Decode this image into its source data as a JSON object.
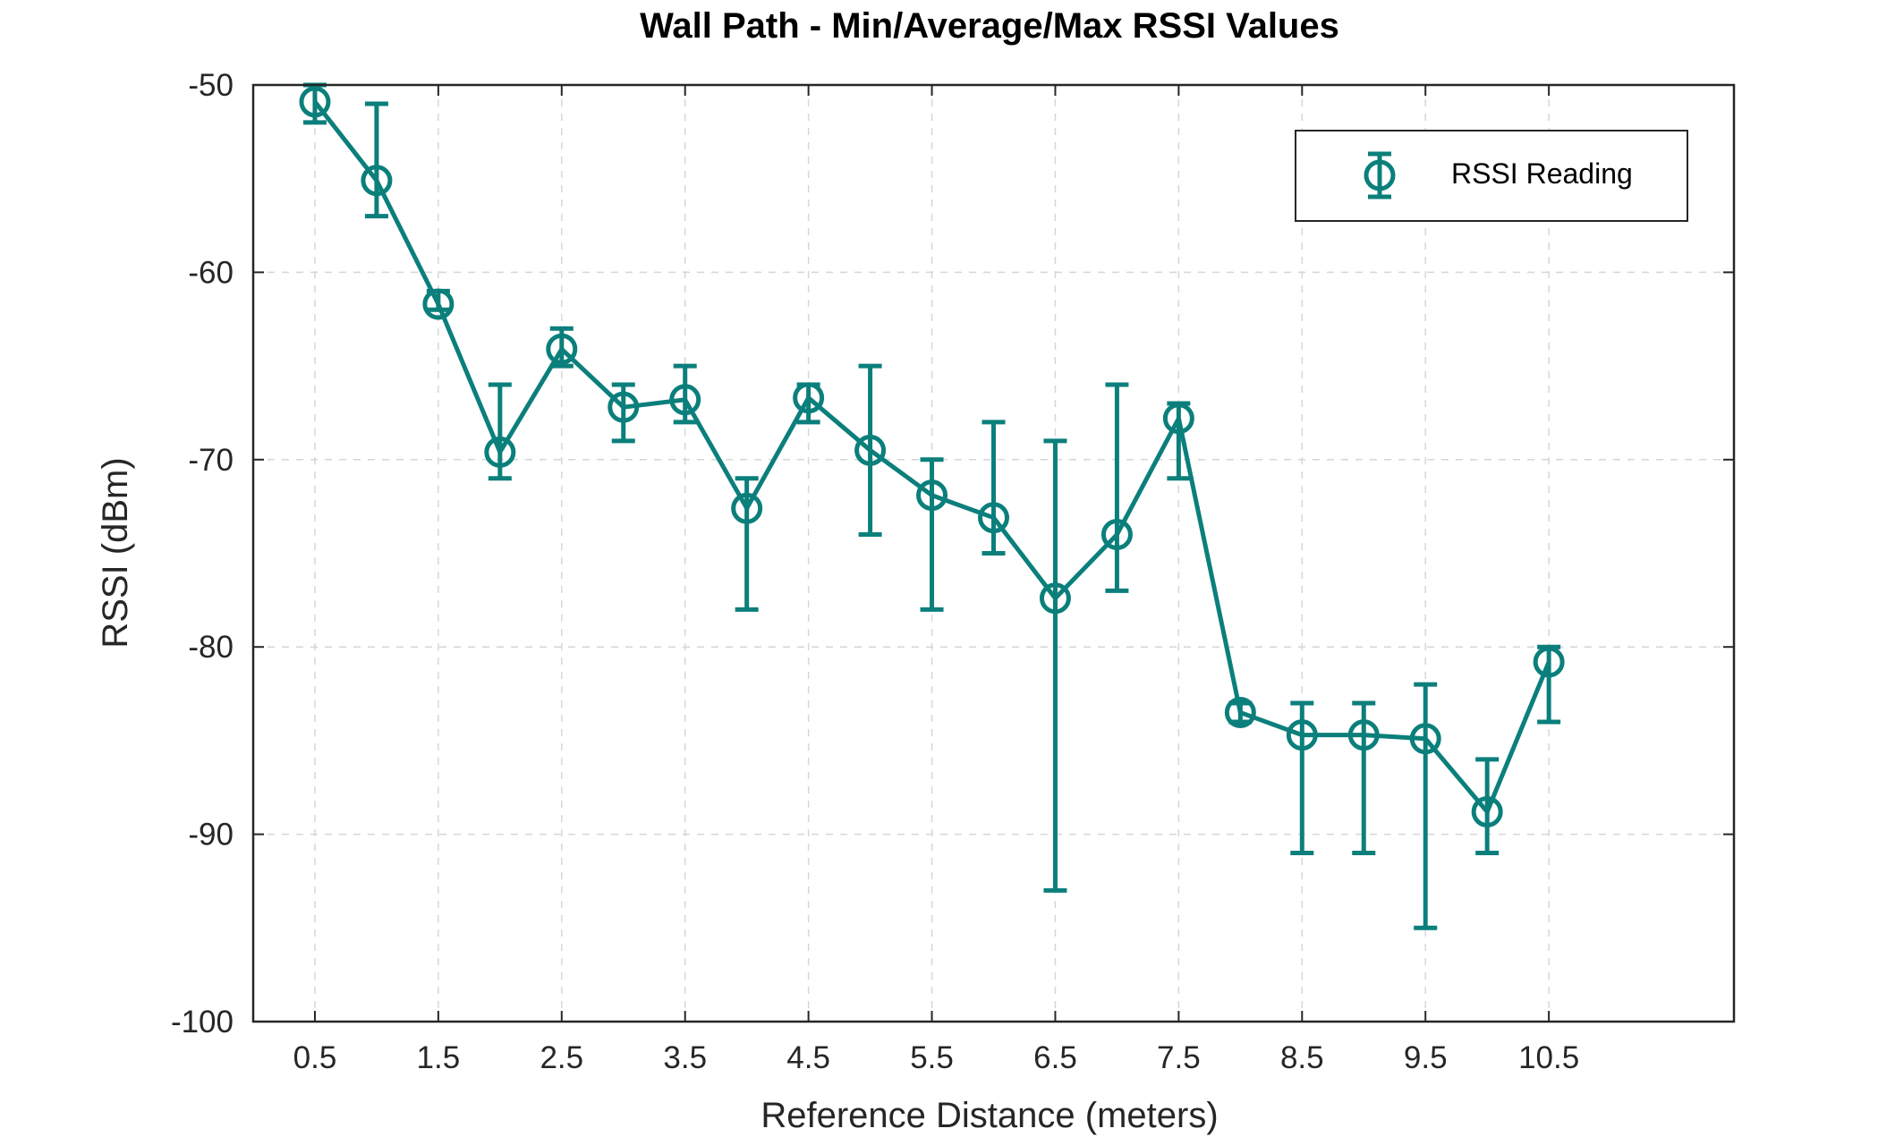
{
  "colors": {
    "series": "#0b7f7b",
    "grid": "#d6d6d6",
    "axis": "#262626"
  },
  "chart_data": {
    "type": "line",
    "title": "Wall Path - Min/Average/Max RSSI Values",
    "xlabel": "Reference Distance (meters)",
    "ylabel": "RSSI (dBm)",
    "xlim": [
      0,
      12
    ],
    "ylim": [
      -100,
      -50
    ],
    "xticks": [
      0.5,
      1.5,
      2.5,
      3.5,
      4.5,
      5.5,
      6.5,
      7.5,
      8.5,
      9.5,
      10.5
    ],
    "xtick_labels": [
      "0.5",
      "1.5",
      "2.5",
      "3.5",
      "4.5",
      "5.5",
      "6.5",
      "7.5",
      "8.5",
      "9.5",
      "10.5"
    ],
    "yticks": [
      -100,
      -90,
      -80,
      -70,
      -60,
      -50
    ],
    "ytick_labels": [
      "-100",
      "-90",
      "-80",
      "-70",
      "-60",
      "-50"
    ],
    "grid": true,
    "legend_position": "top-right",
    "marker": "circle",
    "error_bars": true,
    "series": [
      {
        "name": "RSSI Reading",
        "x": [
          0.5,
          1.0,
          1.5,
          2.0,
          2.5,
          3.0,
          3.5,
          4.0,
          4.5,
          5.0,
          5.5,
          6.0,
          6.5,
          7.0,
          7.5,
          8.0,
          8.5,
          9.0,
          9.5,
          10.0,
          10.5
        ],
        "y": [
          -50.9,
          -55.1,
          -61.7,
          -69.6,
          -64.1,
          -67.2,
          -66.8,
          -72.6,
          -66.7,
          -69.5,
          -71.9,
          -73.1,
          -77.4,
          -74.0,
          -67.8,
          -83.5,
          -84.7,
          -84.7,
          -84.9,
          -88.8,
          -80.8
        ],
        "min": [
          -52.0,
          -57.0,
          -62.0,
          -71.0,
          -65.0,
          -69.0,
          -68.0,
          -78.0,
          -68.0,
          -74.0,
          -78.0,
          -75.0,
          -93.0,
          -77.0,
          -71.0,
          -84.0,
          -91.0,
          -91.0,
          -95.0,
          -91.0,
          -84.0
        ],
        "max": [
          -50.0,
          -51.0,
          -61.0,
          -66.0,
          -63.0,
          -66.0,
          -65.0,
          -71.0,
          -66.0,
          -65.0,
          -70.0,
          -68.0,
          -69.0,
          -66.0,
          -67.0,
          -83.0,
          -83.0,
          -83.0,
          -82.0,
          -86.0,
          -80.0
        ]
      }
    ]
  }
}
